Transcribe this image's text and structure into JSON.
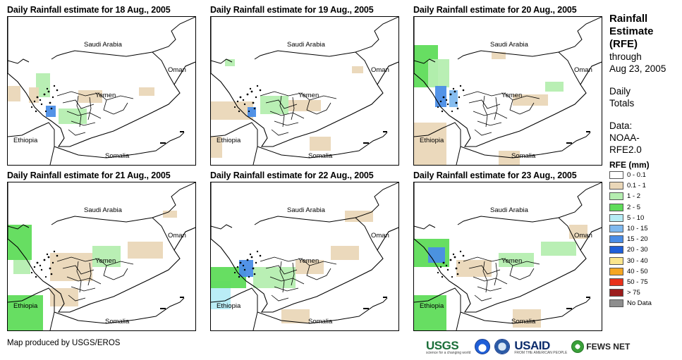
{
  "panels": [
    {
      "title": "Daily Rainfall estimate for 18 Aug., 2005"
    },
    {
      "title": "Daily Rainfall estimate for 19 Aug., 2005"
    },
    {
      "title": "Daily Rainfall estimate for 20 Aug., 2005"
    },
    {
      "title": "Daily Rainfall estimate for 21 Aug., 2005"
    },
    {
      "title": "Daily Rainfall estimate for 22 Aug., 2005"
    },
    {
      "title": "Daily Rainfall estimate for 23 Aug., 2005"
    }
  ],
  "countries": {
    "saudi_arabia": "Saudi Arabia",
    "oman": "Oman",
    "yemen": "Yemen",
    "ethiopia": "Ethiopia",
    "somalia": "Somalia"
  },
  "sidebar": {
    "title_line1": "Rainfall",
    "title_line2": "Estimate",
    "title_line3": "(RFE)",
    "through": "through",
    "date": "Aug 23, 2005",
    "daily": "Daily",
    "totals": "Totals",
    "data_label": "Data:",
    "data_source1": "NOAA-",
    "data_source2": "RFE2.0"
  },
  "legend": {
    "title": "RFE (mm)",
    "items": [
      {
        "label": "0 - 0.1",
        "color": "#ffffff"
      },
      {
        "label": "0.1 - 1",
        "color": "#ead7b8"
      },
      {
        "label": "1 - 2",
        "color": "#b5eeb0"
      },
      {
        "label": "2 - 5",
        "color": "#5fdc5a"
      },
      {
        "label": "5 - 10",
        "color": "#b6ecf5"
      },
      {
        "label": "10 - 15",
        "color": "#7fb9ef"
      },
      {
        "label": "15 - 20",
        "color": "#4a8de6"
      },
      {
        "label": "20 - 30",
        "color": "#1f5fd8"
      },
      {
        "label": "30 - 40",
        "color": "#fae58c"
      },
      {
        "label": "40 - 50",
        "color": "#f5a623"
      },
      {
        "label": "50 - 75",
        "color": "#e8321c"
      },
      {
        "label": "> 75",
        "color": "#9b1c1c"
      },
      {
        "label": "No Data",
        "color": "#8e8e8e"
      }
    ]
  },
  "footer": {
    "credit": "Map produced by USGS/EROS"
  },
  "logos": {
    "usgs": "USGS",
    "usgs_tagline": "science for a changing world",
    "usaid": "USAID",
    "usaid_tagline": "FROM THE AMERICAN PEOPLE",
    "fews": "FEWS NET"
  }
}
